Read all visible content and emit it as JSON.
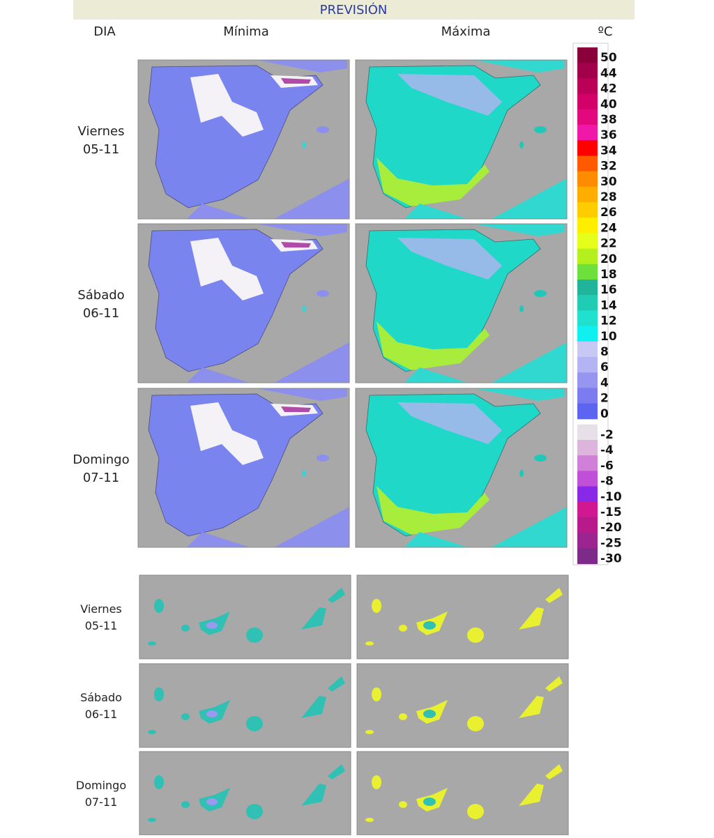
{
  "header": {
    "title": "PREVISIÓN"
  },
  "columns": {
    "day": "DIA",
    "min": "Mínima",
    "max": "Máxima",
    "unit": "ºC"
  },
  "peninsula_rows": [
    {
      "day": "Viernes",
      "date": "05-11"
    },
    {
      "day": "Sábado",
      "date": "06-11"
    },
    {
      "day": "Domingo",
      "date": "07-11"
    }
  ],
  "canarias_rows": [
    {
      "day": "Viernes",
      "date": "05-11"
    },
    {
      "day": "Sábado",
      "date": "06-11"
    },
    {
      "day": "Domingo",
      "date": "07-11"
    }
  ],
  "legend": [
    {
      "label": "50",
      "color": "#8a0038"
    },
    {
      "label": "44",
      "color": "#a2004a"
    },
    {
      "label": "42",
      "color": "#bb0058"
    },
    {
      "label": "40",
      "color": "#d20068"
    },
    {
      "label": "38",
      "color": "#e4087e"
    },
    {
      "label": "36",
      "color": "#f018a8"
    },
    {
      "label": "34",
      "color": "#ff0000"
    },
    {
      "label": "32",
      "color": "#ff5a00"
    },
    {
      "label": "30",
      "color": "#ff8c00"
    },
    {
      "label": "28",
      "color": "#ffad00"
    },
    {
      "label": "26",
      "color": "#ffcc00"
    },
    {
      "label": "24",
      "color": "#ffee00"
    },
    {
      "label": "22",
      "color": "#e6ff1a"
    },
    {
      "label": "20",
      "color": "#b4f01e"
    },
    {
      "label": "18",
      "color": "#6ee03c"
    },
    {
      "label": "16",
      "color": "#20b49a"
    },
    {
      "label": "14",
      "color": "#20ccb4"
    },
    {
      "label": "12",
      "color": "#20e0d0"
    },
    {
      "label": "10",
      "color": "#10f0f0"
    },
    {
      "label": "8",
      "color": "#c8c8f4"
    },
    {
      "label": "6",
      "color": "#b4b4f4"
    },
    {
      "label": "4",
      "color": "#9696f0"
    },
    {
      "label": "2",
      "color": "#7c7cf0"
    },
    {
      "label": "0",
      "color": "#5c64f0"
    },
    {
      "label": "-2",
      "color": "#e8e0e8"
    },
    {
      "label": "-4",
      "color": "#dcb4dc"
    },
    {
      "label": "-6",
      "color": "#d080d8"
    },
    {
      "label": "-8",
      "color": "#c050d8"
    },
    {
      "label": "-10",
      "color": "#8a28e8"
    },
    {
      "label": "-15",
      "color": "#d01890"
    },
    {
      "label": "-20",
      "color": "#b81a8c"
    },
    {
      "label": "-25",
      "color": "#9c2490"
    },
    {
      "label": "-30",
      "color": "#7c2c88"
    }
  ]
}
